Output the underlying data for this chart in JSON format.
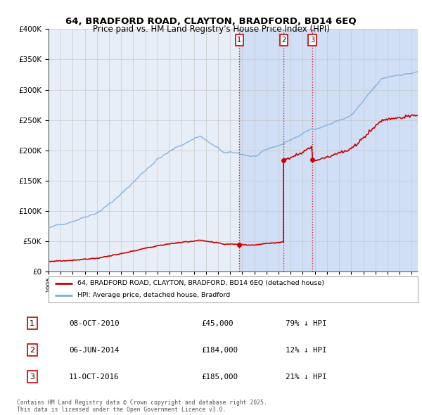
{
  "title_line1": "64, BRADFORD ROAD, CLAYTON, BRADFORD, BD14 6EQ",
  "title_line2": "Price paid vs. HM Land Registry's House Price Index (HPI)",
  "legend_label_red": "64, BRADFORD ROAD, CLAYTON, BRADFORD, BD14 6EQ (detached house)",
  "legend_label_blue": "HPI: Average price, detached house, Bradford",
  "transactions": [
    {
      "num": 1,
      "date_str": "08-OCT-2010",
      "price": 45000,
      "pct": "79% ↓ HPI",
      "x_year": 2010.77
    },
    {
      "num": 2,
      "date_str": "06-JUN-2014",
      "price": 184000,
      "pct": "12% ↓ HPI",
      "x_year": 2014.43
    },
    {
      "num": 3,
      "date_str": "11-OCT-2016",
      "price": 185000,
      "pct": "21% ↓ HPI",
      "x_year": 2016.78
    }
  ],
  "footnote": "Contains HM Land Registry data © Crown copyright and database right 2025.\nThis data is licensed under the Open Government Licence v3.0.",
  "ylim": [
    0,
    400000
  ],
  "xlim_start": 1995.0,
  "xlim_end": 2025.5,
  "plot_bg_color": "#e8eef8",
  "grid_color": "#c8c8c8",
  "hpi_color": "#7aade0",
  "price_color": "#cc0000",
  "shaded_region_color": "#d0dff5",
  "vline_color": "#cc0000"
}
